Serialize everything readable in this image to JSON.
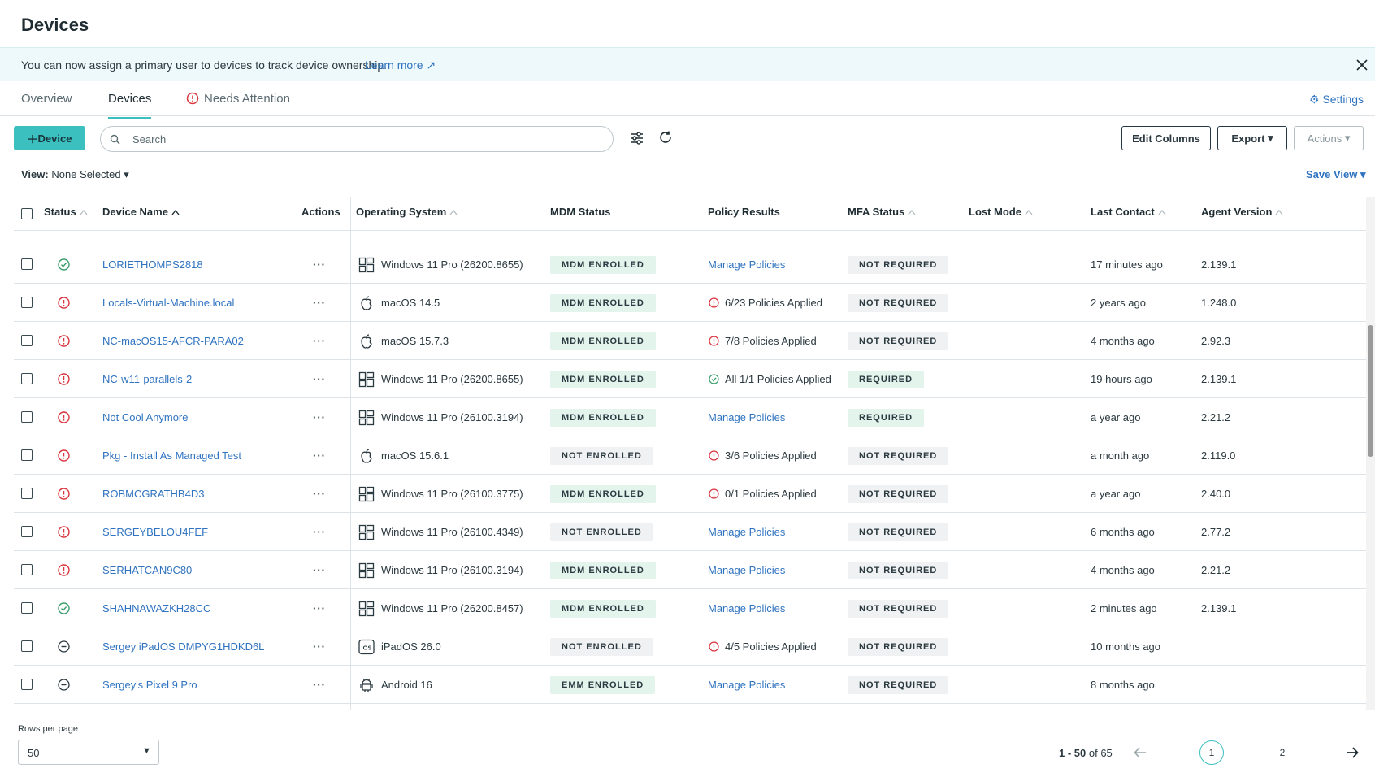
{
  "header": {
    "title": "Devices"
  },
  "banner": {
    "text": "You can now assign a primary user to devices to track device ownership.",
    "link": "Learn more"
  },
  "tabs": {
    "items": [
      "Overview",
      "Devices",
      "Needs Attention"
    ],
    "active": 1,
    "settings": "Settings"
  },
  "toolbar": {
    "add": "Device",
    "search_placeholder": "Search",
    "edit_columns": "Edit Columns",
    "export": "Export",
    "actions": "Actions"
  },
  "view": {
    "label": "View:",
    "value": "None Selected",
    "save": "Save View"
  },
  "table": {
    "columns": [
      {
        "label": "Status",
        "sort": true
      },
      {
        "label": "Device Name",
        "sort": true
      },
      {
        "label": "Actions",
        "sort": false
      },
      {
        "label": "Operating System",
        "sort": true
      },
      {
        "label": "MDM Status",
        "sort": false
      },
      {
        "label": "Policy Results",
        "sort": false
      },
      {
        "label": "MFA Status",
        "sort": true
      },
      {
        "label": "Lost Mode",
        "sort": true
      },
      {
        "label": "Last Contact",
        "sort": true
      },
      {
        "label": "Agent Version",
        "sort": true
      }
    ],
    "rows": [
      {
        "status": "ok",
        "name": "LORIETHOMPS2818",
        "os_icon": "windows",
        "os": "Windows 11 Pro (26200.8655)",
        "mdm": "MDM ENROLLED",
        "mdm_tone": "green",
        "policy": "Manage Policies",
        "mfa": "NOT REQUIRED",
        "mfa_tone": "gray",
        "last_contact": "17 minutes ago",
        "agent": "2.139.1"
      },
      {
        "status": "alert",
        "name": "Locals-Virtual-Machine.local",
        "os_icon": "apple",
        "os": "macOS 14.5",
        "mdm": "MDM ENROLLED",
        "mdm_tone": "green",
        "policy_icon": "alert",
        "policy": "6/23 Policies Applied",
        "mfa": "NOT REQUIRED",
        "mfa_tone": "gray",
        "last_contact": "2 years ago",
        "agent": "1.248.0"
      },
      {
        "status": "alert",
        "name": "NC-macOS15-AFCR-PARA02",
        "os_icon": "apple",
        "os": "macOS 15.7.3",
        "mdm": "MDM ENROLLED",
        "mdm_tone": "green",
        "policy_icon": "alert",
        "policy": "7/8 Policies Applied",
        "mfa": "NOT REQUIRED",
        "mfa_tone": "gray",
        "last_contact": "4 months ago",
        "agent": "2.92.3"
      },
      {
        "status": "alert",
        "name": "NC-w11-parallels-2",
        "os_icon": "windows",
        "os": "Windows 11 Pro (26200.8655)",
        "mdm": "MDM ENROLLED",
        "mdm_tone": "green",
        "policy_icon": "ok",
        "policy": "All 1/1 Policies Applied",
        "mfa": "REQUIRED",
        "mfa_tone": "green",
        "last_contact": "19 hours ago",
        "agent": "2.139.1"
      },
      {
        "status": "alert",
        "name": "Not Cool Anymore",
        "os_icon": "windows",
        "os": "Windows 11 Pro (26100.3194)",
        "mdm": "MDM ENROLLED",
        "mdm_tone": "green",
        "policy": "Manage Policies",
        "mfa": "REQUIRED",
        "mfa_tone": "green",
        "last_contact": "a year ago",
        "agent": "2.21.2"
      },
      {
        "status": "alert",
        "name": "Pkg - Install As Managed Test",
        "os_icon": "apple",
        "os": "macOS 15.6.1",
        "mdm": "NOT ENROLLED",
        "mdm_tone": "gray",
        "policy_icon": "alert",
        "policy": "3/6 Policies Applied",
        "mfa": "NOT REQUIRED",
        "mfa_tone": "gray",
        "last_contact": "a month ago",
        "agent": "2.119.0"
      },
      {
        "status": "alert",
        "name": "ROBMCGRATHB4D3",
        "os_icon": "windows",
        "os": "Windows 11 Pro (26100.3775)",
        "mdm": "MDM ENROLLED",
        "mdm_tone": "green",
        "policy_icon": "alert",
        "policy": "0/1 Policies Applied",
        "mfa": "NOT REQUIRED",
        "mfa_tone": "gray",
        "last_contact": "a year ago",
        "agent": "2.40.0"
      },
      {
        "status": "alert",
        "name": "SERGEYBELOU4FEF",
        "os_icon": "windows",
        "os": "Windows 11 Pro (26100.4349)",
        "mdm": "NOT ENROLLED",
        "mdm_tone": "gray",
        "policy": "Manage Policies",
        "mfa": "NOT REQUIRED",
        "mfa_tone": "gray",
        "last_contact": "6 months ago",
        "agent": "2.77.2"
      },
      {
        "status": "alert",
        "name": "SERHATCAN9C80",
        "os_icon": "windows",
        "os": "Windows 11 Pro (26100.3194)",
        "mdm": "MDM ENROLLED",
        "mdm_tone": "green",
        "policy": "Manage Policies",
        "mfa": "NOT REQUIRED",
        "mfa_tone": "gray",
        "last_contact": "4 months ago",
        "agent": "2.21.2"
      },
      {
        "status": "ok",
        "name": "SHAHNAWAZKH28CC",
        "os_icon": "windows",
        "os": "Windows 11 Pro (26200.8457)",
        "mdm": "MDM ENROLLED",
        "mdm_tone": "green",
        "policy": "Manage Policies",
        "mfa": "NOT REQUIRED",
        "mfa_tone": "gray",
        "last_contact": "2 minutes ago",
        "agent": "2.139.1"
      },
      {
        "status": "none",
        "name": "Sergey iPadOS DMPYG1HDKD6L",
        "os_icon": "ios",
        "os": "iPadOS 26.0",
        "mdm": "NOT ENROLLED",
        "mdm_tone": "gray",
        "policy_icon": "alert",
        "policy": "4/5 Policies Applied",
        "mfa": "NOT REQUIRED",
        "mfa_tone": "gray",
        "last_contact": "10 months ago"
      },
      {
        "status": "none",
        "name": "Sergey's Pixel 9 Pro",
        "os_icon": "android",
        "os": "Android 16",
        "mdm": "EMM ENROLLED",
        "mdm_tone": "green",
        "policy": "Manage Policies",
        "mfa": "NOT REQUIRED",
        "mfa_tone": "gray",
        "last_contact": "8 months ago"
      }
    ]
  },
  "footer": {
    "rows_per_page_label": "Rows per page",
    "rows_per_page": 50,
    "range": "1 - 50",
    "total": "of 65",
    "pages": [
      1,
      2
    ],
    "current": 0
  }
}
